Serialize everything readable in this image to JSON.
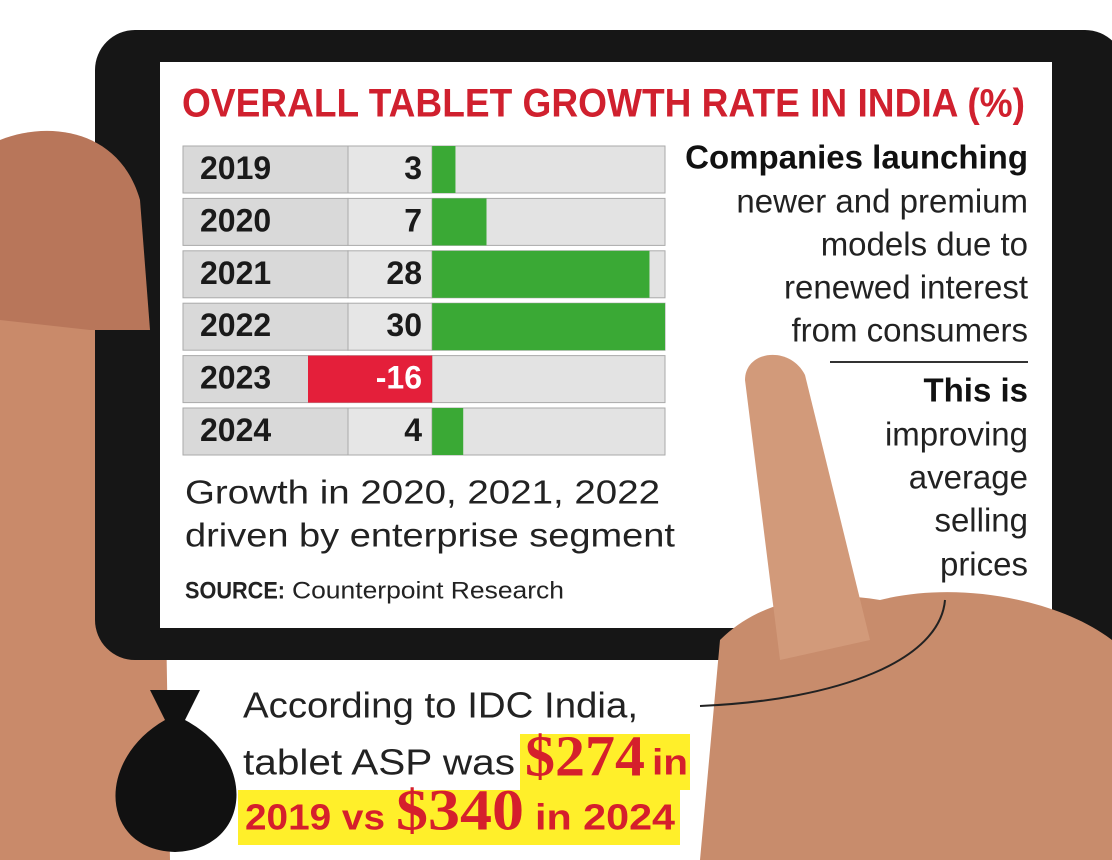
{
  "chart_data": {
    "type": "hbar",
    "title": "OVERALL TABLET GROWTH RATE IN INDIA (%)",
    "categories": [
      "2019",
      "2020",
      "2021",
      "2022",
      "2023",
      "2024"
    ],
    "values": [
      3,
      7,
      28,
      30,
      -16,
      4
    ],
    "color": "#3aa935",
    "negative_color": "#e41f3a",
    "xlim": [
      -16,
      30
    ],
    "callout_top": {
      "heading": "Companies launching",
      "lines": [
        "newer and premium",
        "models due to",
        "renewed interest",
        "from consumers"
      ]
    },
    "callout_bottom": {
      "heading": "This is",
      "lines": [
        "improving",
        "average",
        "selling",
        "prices"
      ]
    },
    "footnote": [
      "Growth in 2020, 2021, 2022",
      "driven by enterprise segment"
    ],
    "source": {
      "label": "SOURCE:",
      "text": "Counterpoint Research"
    },
    "asp_note": {
      "line1": "According to IDC India,",
      "part1": "tablet  ASP was",
      "price1": "$274",
      "part2": "in",
      "part3": "2019 vs",
      "price2": "$340",
      "part4": "in 2024"
    }
  }
}
